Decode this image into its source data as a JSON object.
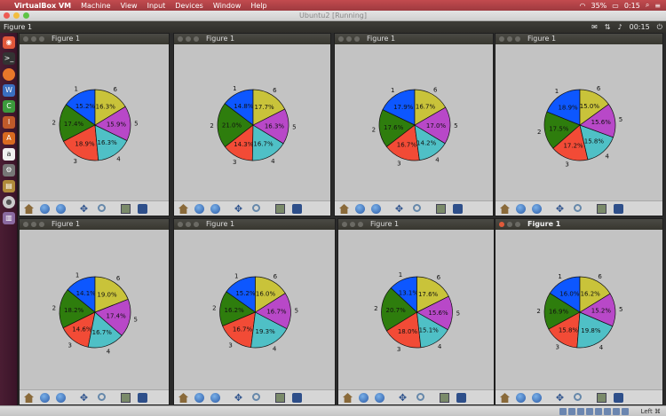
{
  "mac_menubar": {
    "apple": "",
    "app_name": "VirtualBox VM",
    "menus": [
      "Machine",
      "View",
      "Input",
      "Devices",
      "Window",
      "Help"
    ],
    "battery": "35%",
    "time": "0:15"
  },
  "vm_window": {
    "title": "Ubuntu2 [Running]"
  },
  "ubuntu_panel": {
    "active_title": "Figure 1",
    "time": "00:15"
  },
  "status_bar": {
    "host_key": "Left ⌘"
  },
  "launcher_icons": [
    "ubuntu-dash",
    "terminal",
    "firefox",
    "libreoffice-writer",
    "libreoffice-calc",
    "libreoffice-impress",
    "software-center",
    "amazon",
    "settings",
    "files",
    "dvd",
    "trash"
  ],
  "figures": [
    {
      "title": "Figure 1",
      "active": false
    },
    {
      "title": "Figure 1",
      "active": false
    },
    {
      "title": "Figure 1",
      "active": false
    },
    {
      "title": "Figure 1",
      "active": false
    },
    {
      "title": "Figure 1",
      "active": false
    },
    {
      "title": "Figure 1",
      "active": false
    },
    {
      "title": "Figure 1",
      "active": false
    },
    {
      "title": "Figure 1",
      "active": true
    }
  ],
  "chart_data": [
    {
      "type": "pie",
      "labels": [
        "1",
        "2",
        "3",
        "4",
        "5",
        "6"
      ],
      "values": [
        15.2,
        17.4,
        18.9,
        16.3,
        15.9,
        16.3
      ],
      "colors": [
        "#0d57ff",
        "#2e7d0d",
        "#f24b36",
        "#4fc0c6",
        "#b848c8",
        "#c9c33a"
      ]
    },
    {
      "type": "pie",
      "labels": [
        "1",
        "2",
        "3",
        "4",
        "5",
        "6"
      ],
      "values": [
        14.8,
        21.0,
        14.3,
        16.7,
        16.3,
        17.7
      ],
      "colors": [
        "#0d57ff",
        "#2e7d0d",
        "#f24b36",
        "#4fc0c6",
        "#b848c8",
        "#c9c33a"
      ]
    },
    {
      "type": "pie",
      "labels": [
        "1",
        "2",
        "3",
        "4",
        "5",
        "6"
      ],
      "values": [
        17.9,
        17.6,
        16.7,
        14.2,
        17.0,
        16.7
      ],
      "colors": [
        "#0d57ff",
        "#2e7d0d",
        "#f24b36",
        "#4fc0c6",
        "#b848c8",
        "#c9c33a"
      ]
    },
    {
      "type": "pie",
      "labels": [
        "1",
        "2",
        "3",
        "4",
        "5",
        "6"
      ],
      "values": [
        18.9,
        17.5,
        17.2,
        15.8,
        15.6,
        15.0
      ],
      "colors": [
        "#0d57ff",
        "#2e7d0d",
        "#f24b36",
        "#4fc0c6",
        "#b848c8",
        "#c9c33a"
      ]
    },
    {
      "type": "pie",
      "labels": [
        "1",
        "2",
        "3",
        "4",
        "5",
        "6"
      ],
      "values": [
        14.1,
        18.2,
        14.6,
        16.7,
        17.4,
        19.0
      ],
      "colors": [
        "#0d57ff",
        "#2e7d0d",
        "#f24b36",
        "#4fc0c6",
        "#b848c8",
        "#c9c33a"
      ]
    },
    {
      "type": "pie",
      "labels": [
        "1",
        "2",
        "3",
        "4",
        "5",
        "6"
      ],
      "values": [
        15.2,
        16.2,
        16.7,
        19.3,
        16.7,
        16.0
      ],
      "colors": [
        "#0d57ff",
        "#2e7d0d",
        "#f24b36",
        "#4fc0c6",
        "#b848c8",
        "#c9c33a"
      ]
    },
    {
      "type": "pie",
      "labels": [
        "1",
        "2",
        "3",
        "4",
        "5",
        "6"
      ],
      "values": [
        13.1,
        20.7,
        18.0,
        15.1,
        15.6,
        17.6
      ],
      "colors": [
        "#0d57ff",
        "#2e7d0d",
        "#f24b36",
        "#4fc0c6",
        "#b848c8",
        "#c9c33a"
      ]
    },
    {
      "type": "pie",
      "labels": [
        "1",
        "2",
        "3",
        "4",
        "5",
        "6"
      ],
      "values": [
        16.0,
        16.9,
        15.8,
        19.8,
        15.2,
        16.2
      ],
      "colors": [
        "#0d57ff",
        "#2e7d0d",
        "#f24b36",
        "#4fc0c6",
        "#b848c8",
        "#c9c33a"
      ]
    }
  ]
}
